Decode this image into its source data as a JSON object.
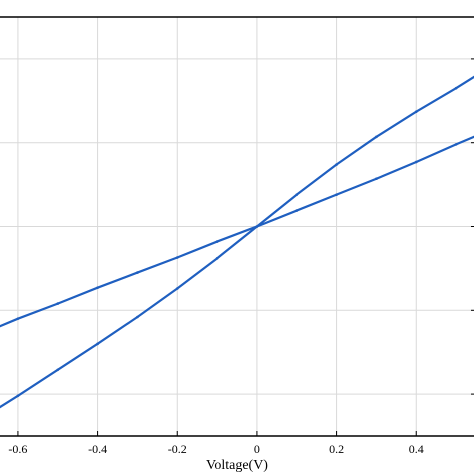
{
  "chart_data": {
    "type": "line",
    "title": "",
    "xlabel": "Voltage(V)",
    "ylabel": "",
    "xlim": [
      -0.65,
      0.55
    ],
    "ylim": [
      -2.5,
      2.5
    ],
    "grid": true,
    "x_ticks": [
      -0.6,
      -0.4,
      -0.2,
      0,
      0.2,
      0.4
    ],
    "x_tick_labels": [
      "-0.6",
      "-0.4",
      "-0.2",
      "0",
      "0.2",
      "0.4"
    ],
    "y_ticks": [
      -2,
      -1,
      0,
      1,
      2
    ],
    "series_color": "#1f5fc0",
    "series": [
      {
        "x": [
          -0.65,
          -0.6,
          -0.5,
          -0.4,
          -0.3,
          -0.2,
          -0.1,
          0,
          0.1,
          0.2,
          0.3,
          0.4,
          0.5,
          0.55
        ],
        "y": [
          -1.2,
          -1.1,
          -0.92,
          -0.73,
          -0.55,
          -0.37,
          -0.18,
          0,
          0.19,
          0.38,
          0.57,
          0.77,
          0.98,
          1.08
        ]
      },
      {
        "x": [
          -0.65,
          -0.6,
          -0.5,
          -0.4,
          -0.3,
          -0.2,
          -0.1,
          0,
          0.1,
          0.2,
          0.3,
          0.4,
          0.5,
          0.55
        ],
        "y": [
          -2.17,
          -2.02,
          -1.71,
          -1.4,
          -1.08,
          -0.74,
          -0.38,
          0,
          0.38,
          0.74,
          1.07,
          1.37,
          1.65,
          1.8
        ]
      }
    ]
  }
}
